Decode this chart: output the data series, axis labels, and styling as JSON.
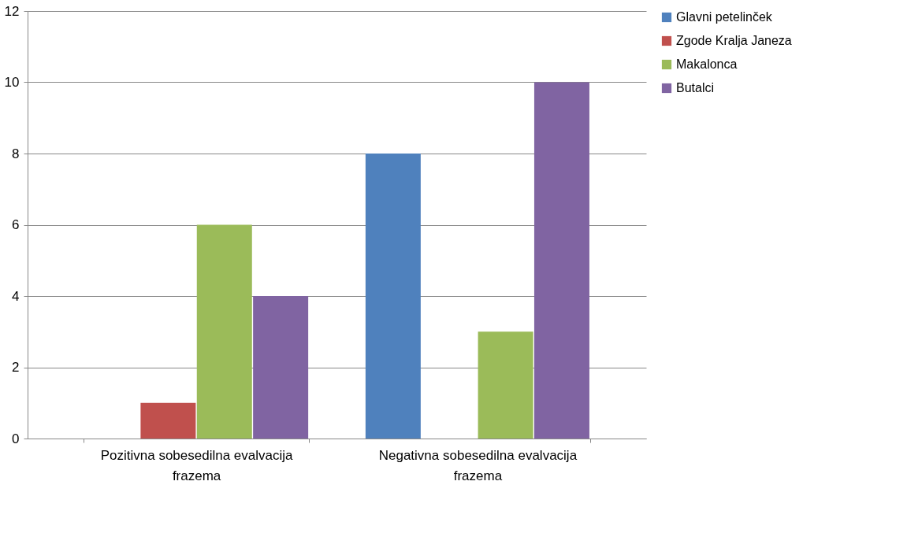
{
  "chart_data": {
    "type": "bar",
    "categories": [
      "Pozitivna sobesedilna evalvacija frazema",
      "Negativna sobesedilna evalvacija frazema"
    ],
    "series": [
      {
        "name": "Glavni petelinček",
        "color": "#4f81bd",
        "values": [
          0,
          8
        ]
      },
      {
        "name": "Zgode Kralja Janeza",
        "color": "#c0504d",
        "values": [
          1,
          0
        ]
      },
      {
        "name": "Makalonca",
        "color": "#9bbb59",
        "values": [
          6,
          3
        ]
      },
      {
        "name": "Butalci",
        "color": "#8064a2",
        "values": [
          4,
          10
        ]
      }
    ],
    "ylim": [
      0,
      12
    ],
    "yticks": [
      0,
      2,
      4,
      6,
      8,
      10,
      12
    ],
    "grid": "y",
    "legend": "right"
  }
}
